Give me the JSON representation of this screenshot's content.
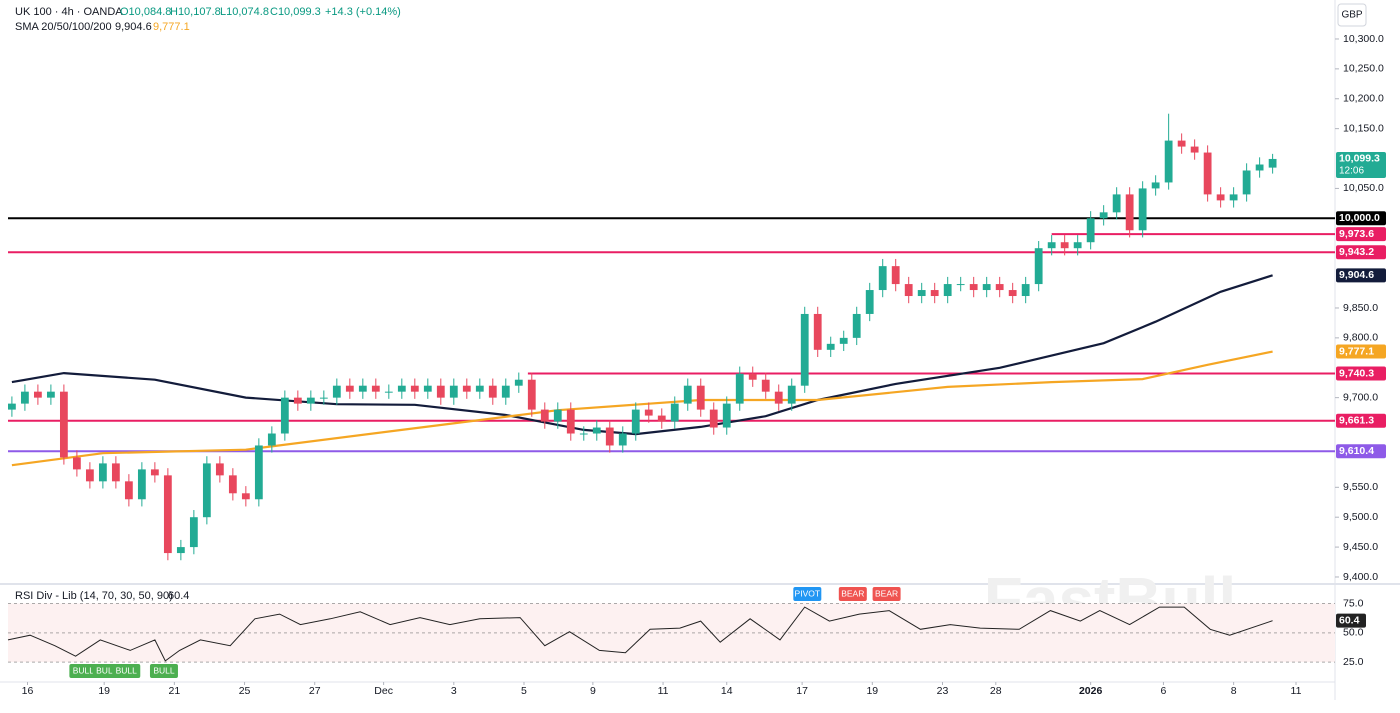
{
  "chart_data": {
    "type": "candlestick",
    "symbol": "UK 100 · 4h · OANDA",
    "ohlc_labels": [
      "O10,084.8",
      "H10,107.8",
      "L10,074.8",
      "C10,099.3"
    ],
    "change": "+14.3 (+0.14%)",
    "sma_label": "SMA 20/50/100/200",
    "currency": "GBP",
    "watermark": "FastBull",
    "up_color": "#22ab94",
    "down_color": "#e8475d",
    "grid": false,
    "xlim": [
      -0.3,
      101.8
    ],
    "xticks": [
      {
        "value": 1.2,
        "label": "16"
      },
      {
        "value": 7.1,
        "label": "19"
      },
      {
        "value": 12.5,
        "label": "21"
      },
      {
        "value": 17.9,
        "label": "25"
      },
      {
        "value": 23.3,
        "label": "27"
      },
      {
        "value": 28.6,
        "label": "Dec"
      },
      {
        "value": 34,
        "label": "3"
      },
      {
        "value": 39.4,
        "label": "5"
      },
      {
        "value": 44.7,
        "label": "9"
      },
      {
        "value": 50.1,
        "label": "11"
      },
      {
        "value": 55,
        "label": "14"
      },
      {
        "value": 60.8,
        "label": "17"
      },
      {
        "value": 66.2,
        "label": "19"
      },
      {
        "value": 71.6,
        "label": "23"
      },
      {
        "value": 75.7,
        "label": "28"
      },
      {
        "value": 83,
        "label": "2026"
      },
      {
        "value": 88.6,
        "label": "6"
      },
      {
        "value": 94,
        "label": "8"
      },
      {
        "value": 98.8,
        "label": "11"
      }
    ],
    "ylim": [
      9391.6,
      10365.2
    ],
    "yticks": [
      {
        "value": 10300,
        "label": "10,300.0"
      },
      {
        "value": 10250,
        "label": "10,250.0"
      },
      {
        "value": 10200,
        "label": "10,200.0"
      },
      {
        "value": 10150,
        "label": "10,150.0"
      },
      {
        "value": 10050,
        "label": "10,050.0"
      },
      {
        "value": 9850,
        "label": "9,850.0"
      },
      {
        "value": 9800,
        "label": "9,800.0"
      },
      {
        "value": 9700,
        "label": "9,700.0"
      },
      {
        "value": 9550,
        "label": "9,550.0"
      },
      {
        "value": 9500,
        "label": "9,500.0"
      },
      {
        "value": 9450,
        "label": "9,450.0"
      },
      {
        "value": 9400,
        "label": "9,400.0"
      }
    ],
    "open": [
      9680,
      9690,
      9710,
      9700,
      9710,
      9600,
      9580,
      9560,
      9590,
      9560,
      9530,
      9580,
      9570,
      9440,
      9450,
      9500,
      9590,
      9570,
      9540,
      9530,
      9620,
      9640,
      9700,
      9690,
      9700,
      9700,
      9720,
      9710,
      9720,
      9710,
      9710,
      9720,
      9710,
      9720,
      9700,
      9720,
      9710,
      9720,
      9700,
      9720,
      9730,
      9680,
      9660,
      9680,
      9640,
      9640,
      9650,
      9620,
      9640,
      9680,
      9670,
      9660,
      9690,
      9720,
      9680,
      9650,
      9690,
      9740,
      9730,
      9710,
      9690,
      9720,
      9840,
      9780,
      9790,
      9800,
      9840,
      9880,
      9920,
      9890,
      9870,
      9880,
      9870,
      9890,
      9890,
      9880,
      9890,
      9880,
      9870,
      9890,
      9950,
      9960,
      9950,
      9960,
      10000,
      10010,
      10040,
      9980,
      10050,
      10060,
      10130,
      10120,
      10110,
      10040,
      10030,
      10040,
      10080,
      10084.8
    ],
    "high": [
      9702,
      9722,
      9722,
      9722,
      9722,
      9612,
      9592,
      9602,
      9602,
      9572,
      9592,
      9592,
      9582,
      9462,
      9512,
      9602,
      9602,
      9582,
      9552,
      9632,
      9652,
      9712,
      9712,
      9712,
      9712,
      9732,
      9732,
      9732,
      9732,
      9722,
      9732,
      9732,
      9732,
      9732,
      9732,
      9732,
      9732,
      9732,
      9732,
      9742,
      9742,
      9692,
      9692,
      9692,
      9652,
      9662,
      9662,
      9652,
      9692,
      9692,
      9682,
      9702,
      9732,
      9732,
      9692,
      9702,
      9752,
      9752,
      9742,
      9722,
      9732,
      9852,
      9852,
      9802,
      9812,
      9852,
      9892,
      9932,
      9932,
      9902,
      9892,
      9892,
      9902,
      9902,
      9902,
      9902,
      9902,
      9892,
      9902,
      9962,
      9972,
      9972,
      9972,
      10012,
      10022,
      10052,
      10052,
      10062,
      10072,
      10175,
      10142,
      10132,
      10122,
      10052,
      10052,
      10092,
      10102,
      10107.8
    ],
    "low": [
      9668,
      9678,
      9688,
      9688,
      9588,
      9568,
      9548,
      9548,
      9548,
      9518,
      9518,
      9558,
      9428,
      9428,
      9438,
      9488,
      9558,
      9528,
      9518,
      9518,
      9608,
      9628,
      9678,
      9678,
      9688,
      9688,
      9698,
      9698,
      9698,
      9698,
      9698,
      9698,
      9698,
      9688,
      9688,
      9698,
      9698,
      9688,
      9688,
      9708,
      9668,
      9648,
      9648,
      9628,
      9628,
      9628,
      9608,
      9608,
      9628,
      9658,
      9648,
      9648,
      9678,
      9668,
      9638,
      9638,
      9678,
      9718,
      9698,
      9678,
      9678,
      9708,
      9768,
      9768,
      9778,
      9788,
      9828,
      9868,
      9878,
      9858,
      9858,
      9858,
      9858,
      9878,
      9868,
      9868,
      9868,
      9858,
      9858,
      9878,
      9938,
      9938,
      9938,
      9948,
      9988,
      9998,
      9968,
      9968,
      10038,
      10048,
      10108,
      10098,
      10028,
      10018,
      10018,
      10028,
      10068,
      10074.8
    ],
    "close": [
      9690,
      9710,
      9700,
      9710,
      9600,
      9580,
      9560,
      9590,
      9560,
      9530,
      9580,
      9570,
      9440,
      9450,
      9500,
      9590,
      9570,
      9540,
      9530,
      9620,
      9640,
      9700,
      9690,
      9700,
      9700,
      9720,
      9710,
      9720,
      9710,
      9710,
      9720,
      9710,
      9720,
      9700,
      9720,
      9710,
      9720,
      9700,
      9720,
      9730,
      9680,
      9660,
      9680,
      9640,
      9640,
      9650,
      9620,
      9640,
      9680,
      9670,
      9660,
      9690,
      9720,
      9680,
      9650,
      9690,
      9740,
      9730,
      9710,
      9690,
      9720,
      9840,
      9780,
      9790,
      9800,
      9840,
      9880,
      9920,
      9890,
      9870,
      9880,
      9870,
      9890,
      9890,
      9880,
      9890,
      9880,
      9870,
      9890,
      9950,
      9960,
      9950,
      9960,
      10000,
      10010,
      10040,
      9980,
      10050,
      10060,
      10130,
      10120,
      10110,
      10040,
      10030,
      10040,
      10080,
      10090,
      10099.3
    ],
    "last_price_label": "10,099.3",
    "countdown": "12:06",
    "series": [
      {
        "color": "#131c3b",
        "value_label": "9,904.6",
        "x": [
          0,
          4,
          11,
          18,
          25,
          31,
          38,
          44,
          48,
          53,
          58,
          62,
          68,
          76,
          84,
          88,
          93,
          97
        ],
        "values": [
          9726,
          9741,
          9730,
          9700,
          9689,
          9688,
          9671,
          9646,
          9639,
          9651,
          9669,
          9696,
          9723,
          9750,
          9791,
          9827,
          9877,
          9904.6
        ]
      },
      {
        "color": "#f5a623",
        "value_label": "9,777.1",
        "x": [
          0,
          7,
          18,
          30,
          42,
          53,
          62,
          72,
          80,
          87,
          92,
          97
        ],
        "values": [
          9587,
          9607,
          9613,
          9646,
          9679,
          9696,
          9696,
          9718,
          9726,
          9731,
          9755,
          9777.1
        ]
      }
    ],
    "levels": [
      {
        "value": 10000,
        "label": "10,000.0",
        "color": "#000000"
      },
      {
        "value": 9973.6,
        "label": "9,973.6",
        "color": "#e91e63",
        "from": 80
      },
      {
        "value": 9943.2,
        "label": "9,943.2",
        "color": "#e91e63"
      },
      {
        "value": 9740.3,
        "label": "9,740.3",
        "color": "#e91e63",
        "from": 39.7
      },
      {
        "value": 9661.3,
        "label": "9,661.3",
        "color": "#e91e63"
      },
      {
        "value": 9610.4,
        "label": "9,610.4",
        "color": "#8e5ae8"
      }
    ],
    "rsi": {
      "title": "RSI Div - Lib (14, 70, 30, 50, 90)",
      "value_label": "60.4",
      "color": "#222222",
      "ylim": [
        8,
        90
      ],
      "yticks": [
        {
          "value": 75,
          "label": "75.0"
        },
        {
          "value": 50,
          "label": "50.0"
        },
        {
          "value": 25,
          "label": "25.0"
        }
      ],
      "x": [
        -0.3,
        1.4,
        3.3,
        4.9,
        6.8,
        9.1,
        11,
        11.8,
        12.9,
        14.5,
        16.8,
        18.7,
        20.6,
        22.2,
        24.5,
        26.8,
        29.1,
        31.4,
        33.7,
        36,
        39.1,
        41,
        42.9,
        45.2,
        47.2,
        49.1,
        51.4,
        53,
        54.5,
        56.8,
        59.1,
        61,
        62.9,
        65.2,
        67.5,
        69.9,
        72.2,
        74.5,
        77.5,
        79.9,
        82.2,
        83.7,
        86,
        88.3,
        90.2,
        92.2,
        93.7,
        97
      ],
      "values": [
        44,
        48,
        39,
        30,
        44,
        35,
        44,
        26,
        35,
        44,
        39,
        62,
        66,
        57,
        62,
        68,
        57,
        63,
        57,
        62,
        63,
        39,
        51,
        35,
        33,
        53,
        54,
        60,
        42,
        62,
        44,
        72,
        60,
        66,
        69,
        53,
        57,
        54,
        53,
        69,
        60,
        69,
        57,
        72,
        72,
        53,
        48,
        60.4
      ]
    },
    "signals": [
      {
        "label": "BULL",
        "x": 5.5,
        "color": "#4caf50",
        "side": "bottom"
      },
      {
        "label": "BULL",
        "x": 7.3,
        "color": "#4caf50",
        "side": "bottom"
      },
      {
        "label": "BULL",
        "x": 8.8,
        "color": "#4caf50",
        "side": "bottom"
      },
      {
        "label": "BULL",
        "x": 11.7,
        "color": "#4caf50",
        "side": "bottom"
      },
      {
        "label": "PIVOT",
        "x": 61.2,
        "color": "#2196f3",
        "side": "top"
      },
      {
        "label": "BEAR",
        "x": 64.7,
        "color": "#ef5350",
        "side": "top"
      },
      {
        "label": "BEAR",
        "x": 67.3,
        "color": "#ef5350",
        "side": "top"
      }
    ]
  }
}
